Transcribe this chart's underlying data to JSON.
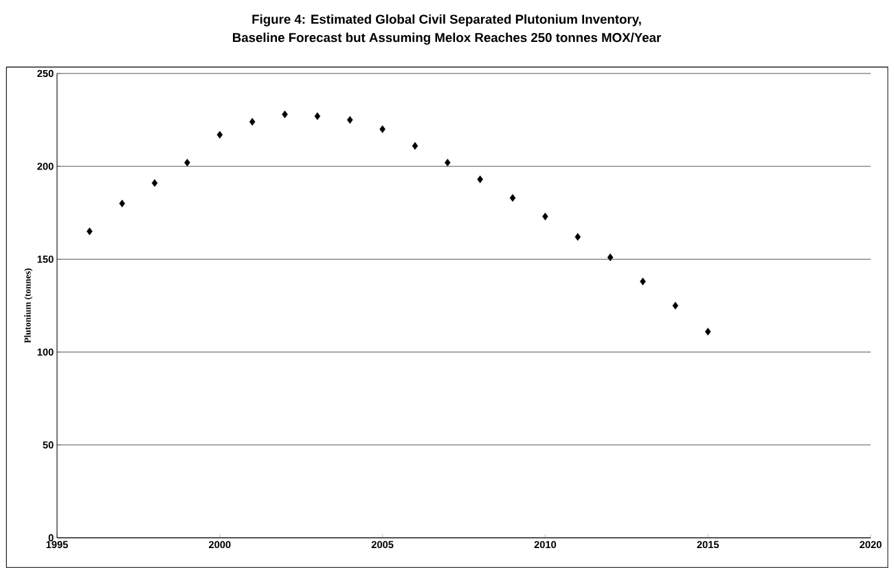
{
  "chart_data": {
    "type": "scatter",
    "title": "Figure 4:  Estimated Global Civil Separated Plutonium Inventory,",
    "subtitle": "Baseline Forecast but Assuming Melox Reaches 250 tonnes MOX/Year",
    "ylabel": "Plutonium (tonnes)",
    "x": [
      1996,
      1997,
      1998,
      1999,
      2000,
      2001,
      2002,
      2003,
      2004,
      2005,
      2006,
      2007,
      2008,
      2009,
      2010,
      2011,
      2012,
      2013,
      2014,
      2015
    ],
    "values": [
      165,
      180,
      191,
      202,
      217,
      224,
      228,
      227,
      225,
      220,
      211,
      202,
      193,
      183,
      173,
      162,
      151,
      138,
      125,
      111
    ],
    "color": "#000000",
    "marker": "diamond",
    "grid": "y",
    "xlim": [
      1995,
      2020
    ],
    "xticks": [
      1995,
      2000,
      2005,
      2010,
      2015,
      2020
    ],
    "ylim": [
      0,
      250
    ],
    "yticks": [
      0,
      50,
      100,
      150,
      200,
      250
    ]
  }
}
